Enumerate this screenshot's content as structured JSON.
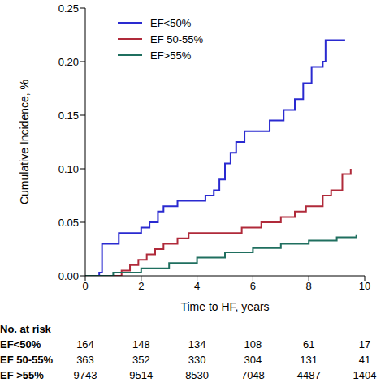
{
  "chart_data": {
    "type": "line",
    "x_label": "Time to HF, years",
    "y_label": "Cumulative Incidence, %",
    "xlim": [
      0,
      10
    ],
    "xticks": [
      0,
      2,
      4,
      6,
      8,
      10
    ],
    "ylim": [
      0,
      0.25
    ],
    "yticks": [
      {
        "value": 0,
        "label": "0.00"
      },
      {
        "value": 0.05,
        "label": "0.05"
      },
      {
        "value": 0.1,
        "label": "0.10"
      },
      {
        "value": 0.15,
        "label": "0.15"
      },
      {
        "value": 0.2,
        "label": "0.20"
      },
      {
        "value": 0.25,
        "label": "0.25"
      }
    ],
    "grid": false,
    "legend": "upper left",
    "line_style": "step",
    "series": [
      {
        "name": "EF<50%",
        "color": "#2a2ad0",
        "x": [
          0,
          0.5,
          0.6,
          1.2,
          2.0,
          2.3,
          2.6,
          2.8,
          3.3,
          4.3,
          4.6,
          4.8,
          5.0,
          5.2,
          5.4,
          5.7,
          6.6,
          7.1,
          7.5,
          7.8,
          8.1,
          8.5,
          8.6,
          9.3
        ],
        "values": [
          0,
          0.003,
          0.03,
          0.04,
          0.045,
          0.05,
          0.06,
          0.065,
          0.07,
          0.075,
          0.08,
          0.09,
          0.105,
          0.115,
          0.125,
          0.135,
          0.145,
          0.155,
          0.165,
          0.18,
          0.195,
          0.2,
          0.22,
          0.22
        ]
      },
      {
        "name": "EF 50-55%",
        "color": "#b02a3a",
        "x": [
          0,
          1.3,
          1.6,
          1.9,
          2.2,
          2.5,
          2.8,
          3.3,
          3.7,
          5.6,
          6.3,
          7.0,
          7.5,
          7.9,
          8.5,
          8.8,
          9.2,
          9.5
        ],
        "values": [
          0,
          0.005,
          0.01,
          0.015,
          0.02,
          0.025,
          0.03,
          0.035,
          0.04,
          0.045,
          0.05,
          0.055,
          0.06,
          0.065,
          0.075,
          0.08,
          0.095,
          0.1
        ]
      },
      {
        "name": "EF>55%",
        "color": "#1f6f5f",
        "x": [
          0,
          1,
          2,
          3,
          4,
          5,
          6,
          7,
          8,
          9,
          9.7
        ],
        "values": [
          0,
          0.003,
          0.007,
          0.012,
          0.017,
          0.022,
          0.026,
          0.03,
          0.033,
          0.036,
          0.038
        ]
      }
    ],
    "at_risk": {
      "title": "No. at risk",
      "times": [
        0,
        2,
        4,
        6,
        8,
        10
      ],
      "rows": [
        {
          "label": "EF<50%",
          "values": [
            164,
            148,
            134,
            108,
            61,
            17
          ]
        },
        {
          "label": "EF 50-55%",
          "values": [
            363,
            352,
            330,
            304,
            131,
            41
          ]
        },
        {
          "label": "EF >55%",
          "values": [
            9743,
            9514,
            8530,
            7048,
            4487,
            1404
          ]
        }
      ]
    }
  }
}
